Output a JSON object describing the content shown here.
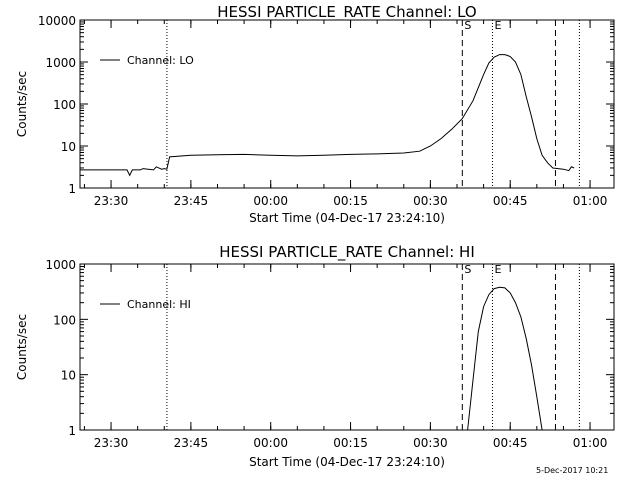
{
  "stamp": "5-Dec-2017 10:21",
  "chart_data": [
    {
      "type": "line",
      "title": "HESSI PARTICLE_RATE Channel: LO",
      "xlabel": "Start Time (04-Dec-17 23:24:10)",
      "ylabel": "Counts/sec",
      "yscale": "log",
      "xlim": [
        "23:24:10",
        "01:04:30"
      ],
      "ylim": [
        1,
        10000
      ],
      "xticks": [
        "23:30",
        "23:45",
        "00:00",
        "00:15",
        "00:30",
        "00:45",
        "01:00"
      ],
      "yticks": [
        "1",
        "10",
        "100",
        "1000",
        "10000"
      ],
      "legend": {
        "position": "top-left",
        "entries": [
          "Channel: LO"
        ]
      },
      "markers": [
        {
          "time": "23:40:30",
          "style": "dotted",
          "label": ""
        },
        {
          "time": "00:36:00",
          "style": "dashed",
          "label": "S"
        },
        {
          "time": "00:41:40",
          "style": "dotted",
          "label": "E"
        },
        {
          "time": "00:53:30",
          "style": "dashed",
          "label": ""
        },
        {
          "time": "00:58:00",
          "style": "dotted",
          "label": ""
        }
      ],
      "series": [
        {
          "name": "Channel: LO",
          "x": [
            "23:24:10",
            "23:33:00",
            "23:33:30",
            "23:34:00",
            "23:35:30",
            "23:36:00",
            "23:37:00",
            "23:38:00",
            "23:38:30",
            "23:39:30",
            "23:40:00",
            "23:40:30",
            "23:41:00",
            "23:45:00",
            "23:50:00",
            "23:55:00",
            "00:00:00",
            "00:05:00",
            "00:10:00",
            "00:15:00",
            "00:20:00",
            "00:25:00",
            "00:28:00",
            "00:30:00",
            "00:32:00",
            "00:34:00",
            "00:36:00",
            "00:38:00",
            "00:40:00",
            "00:41:00",
            "00:42:00",
            "00:43:00",
            "00:44:00",
            "00:45:00",
            "00:46:00",
            "00:47:00",
            "00:48:00",
            "00:49:00",
            "00:50:00",
            "00:51:00",
            "00:52:00",
            "00:53:00",
            "00:55:00",
            "00:56:00",
            "00:56:30",
            "00:57:00"
          ],
          "values": [
            2.7,
            2.7,
            2.0,
            2.7,
            2.7,
            2.9,
            2.8,
            2.7,
            3.2,
            2.8,
            2.9,
            2.8,
            5.5,
            6.0,
            6.2,
            6.3,
            6.0,
            5.8,
            6.0,
            6.3,
            6.5,
            6.8,
            7.5,
            10,
            15,
            25,
            45,
            120,
            500,
            950,
            1300,
            1500,
            1500,
            1350,
            1000,
            500,
            150,
            50,
            15,
            6,
            4,
            3,
            2.8,
            2.6,
            3.2,
            3.0
          ]
        }
      ]
    },
    {
      "type": "line",
      "title": "HESSI PARTICLE_RATE Channel: HI",
      "xlabel": "Start Time (04-Dec-17 23:24:10)",
      "ylabel": "Counts/sec",
      "yscale": "log",
      "xlim": [
        "23:24:10",
        "01:04:30"
      ],
      "ylim": [
        1,
        1000
      ],
      "xticks": [
        "23:30",
        "23:45",
        "00:00",
        "00:15",
        "00:30",
        "00:45",
        "01:00"
      ],
      "yticks": [
        "1",
        "10",
        "100",
        "1000"
      ],
      "legend": {
        "position": "top-left",
        "entries": [
          "Channel: HI"
        ]
      },
      "markers": [
        {
          "time": "23:40:30",
          "style": "dotted",
          "label": ""
        },
        {
          "time": "00:36:00",
          "style": "dashed",
          "label": "S"
        },
        {
          "time": "00:41:40",
          "style": "dotted",
          "label": "E"
        },
        {
          "time": "00:53:30",
          "style": "dashed",
          "label": ""
        },
        {
          "time": "00:58:00",
          "style": "dotted",
          "label": ""
        }
      ],
      "series": [
        {
          "name": "Channel: HI",
          "x": [
            "00:37:00",
            "00:38:00",
            "00:39:00",
            "00:40:00",
            "00:41:00",
            "00:42:00",
            "00:43:00",
            "00:44:00",
            "00:45:00",
            "00:46:00",
            "00:47:00",
            "00:48:00",
            "00:49:00",
            "00:50:00",
            "00:51:00"
          ],
          "values": [
            1,
            8,
            60,
            170,
            280,
            360,
            380,
            370,
            300,
            200,
            110,
            45,
            15,
            4,
            1
          ]
        }
      ]
    }
  ]
}
